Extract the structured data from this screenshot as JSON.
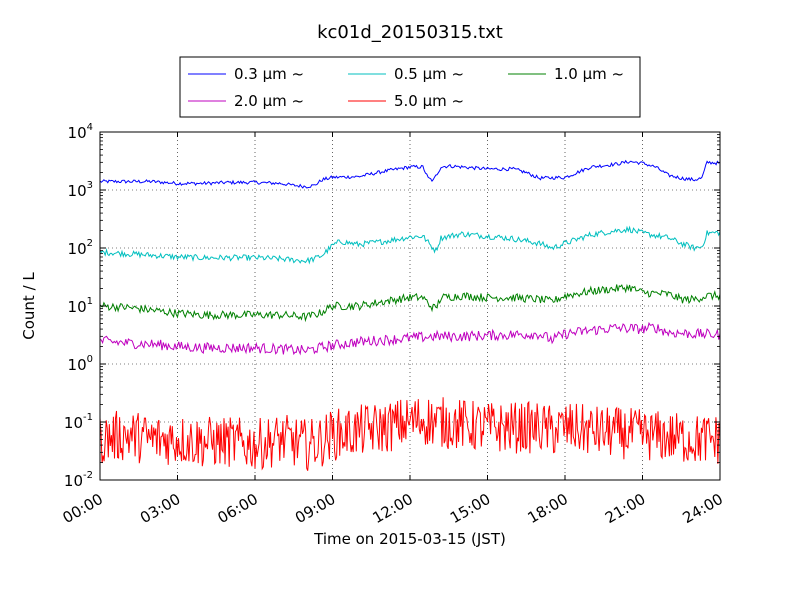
{
  "chart_data": {
    "type": "line",
    "title": "kc01d_20150315.txt",
    "xlabel": "Time on 2015-03-15 (JST)",
    "ylabel": "Count / L",
    "x_unit": "hours",
    "xlim": [
      0,
      24
    ],
    "ylim": [
      0.01,
      10000
    ],
    "yscale": "log",
    "grid": true,
    "legend_position": "top-center",
    "x_ticks": [
      {
        "value": 0,
        "label": "00:00"
      },
      {
        "value": 3,
        "label": "03:00"
      },
      {
        "value": 6,
        "label": "06:00"
      },
      {
        "value": 9,
        "label": "09:00"
      },
      {
        "value": 12,
        "label": "12:00"
      },
      {
        "value": 15,
        "label": "15:00"
      },
      {
        "value": 18,
        "label": "18:00"
      },
      {
        "value": 21,
        "label": "21:00"
      },
      {
        "value": 24,
        "label": "24:00"
      }
    ],
    "y_ticks": [
      {
        "value": 0.01,
        "base": "10",
        "exp": "-2"
      },
      {
        "value": 0.1,
        "base": "10",
        "exp": "-1"
      },
      {
        "value": 1,
        "base": "10",
        "exp": "0"
      },
      {
        "value": 10,
        "base": "10",
        "exp": "1"
      },
      {
        "value": 100,
        "base": "10",
        "exp": "2"
      },
      {
        "value": 1000,
        "base": "10",
        "exp": "3"
      },
      {
        "value": 10000,
        "base": "10",
        "exp": "4"
      }
    ],
    "series": [
      {
        "name": "0.3 μm ~",
        "color": "#0000ff",
        "x": [
          0,
          1,
          2,
          3,
          4,
          5,
          6,
          7,
          7.5,
          8,
          8.3,
          8.6,
          9,
          10,
          11,
          12,
          12.5,
          12.7,
          12.9,
          13.2,
          13.5,
          14,
          15,
          16,
          16.5,
          17,
          18,
          19,
          20,
          20.5,
          21,
          21.5,
          22,
          22.5,
          23,
          23.3,
          23.5,
          24
        ],
        "values": [
          1400,
          1400,
          1400,
          1300,
          1300,
          1350,
          1350,
          1300,
          1200,
          1150,
          1200,
          1500,
          1650,
          1700,
          2100,
          2500,
          2500,
          1600,
          1450,
          2500,
          2600,
          2500,
          2300,
          2300,
          2000,
          1600,
          1650,
          2500,
          2800,
          3100,
          2900,
          2500,
          1800,
          1600,
          1500,
          1600,
          3000,
          2900
        ]
      },
      {
        "name": "0.5 μm ~",
        "color": "#00bfbf",
        "x": [
          0,
          1,
          2,
          3,
          4,
          5,
          6,
          7,
          7.5,
          8,
          8.3,
          8.6,
          9,
          9.3,
          10,
          11,
          12,
          12.5,
          12.8,
          13,
          13.2,
          14,
          15,
          16,
          17,
          17.5,
          18,
          19,
          20,
          20.5,
          21,
          22,
          22.5,
          23,
          23.3,
          23.5,
          24
        ],
        "values": [
          85,
          80,
          75,
          70,
          68,
          68,
          68,
          65,
          62,
          60,
          65,
          75,
          110,
          130,
          115,
          130,
          155,
          160,
          110,
          90,
          150,
          175,
          160,
          145,
          120,
          100,
          120,
          170,
          200,
          210,
          180,
          150,
          120,
          100,
          105,
          180,
          185
        ]
      },
      {
        "name": "1.0 μm ~",
        "color": "#008000",
        "x": [
          0,
          1,
          2,
          3,
          4,
          5,
          6,
          7,
          8,
          8.5,
          9,
          10,
          11,
          12,
          12.5,
          12.8,
          13,
          13.2,
          14,
          15,
          16,
          17,
          17.5,
          18,
          19,
          20,
          20.5,
          21,
          22,
          22.5,
          23,
          23.5,
          24
        ],
        "values": [
          10,
          9.5,
          8.5,
          7.5,
          7,
          7,
          7,
          7,
          6.5,
          7.5,
          10,
          10,
          12,
          14,
          14,
          10,
          9,
          14,
          15,
          14,
          14,
          13,
          12,
          15,
          18,
          20,
          21,
          17,
          16,
          13,
          13,
          15,
          15
        ]
      },
      {
        "name": "2.0 μm ~",
        "color": "#bf00bf",
        "x": [
          0,
          1,
          2,
          3,
          4,
          5,
          6,
          7,
          8,
          8.5,
          9,
          10,
          11,
          12,
          13,
          14,
          15,
          16,
          17,
          17.5,
          18,
          19,
          20,
          21,
          21.5,
          22,
          23,
          24
        ],
        "values": [
          2.5,
          2.3,
          2.2,
          2.0,
          1.9,
          1.9,
          1.9,
          1.8,
          1.7,
          1.9,
          2.1,
          2.4,
          2.6,
          2.8,
          3.0,
          3.0,
          3.1,
          3.2,
          3.3,
          2.6,
          3.3,
          3.8,
          4.2,
          4.0,
          4.3,
          3.5,
          3.3,
          3.2
        ]
      },
      {
        "name": "5.0 μm ~",
        "color": "#ff0000",
        "x": [
          0,
          1,
          2,
          3,
          4,
          5,
          6,
          7,
          7.5,
          8,
          8.5,
          9,
          10,
          11,
          11.5,
          12,
          12.5,
          13,
          14,
          15,
          16,
          17,
          17.5,
          18,
          19,
          20,
          21,
          22,
          23,
          24
        ],
        "values": [
          0.05,
          0.06,
          0.05,
          0.05,
          0.045,
          0.045,
          0.04,
          0.05,
          0.045,
          0.04,
          0.045,
          0.06,
          0.07,
          0.08,
          0.09,
          0.1,
          0.11,
          0.1,
          0.09,
          0.08,
          0.08,
          0.08,
          0.07,
          0.08,
          0.07,
          0.065,
          0.06,
          0.055,
          0.05,
          0.05
        ]
      }
    ]
  }
}
